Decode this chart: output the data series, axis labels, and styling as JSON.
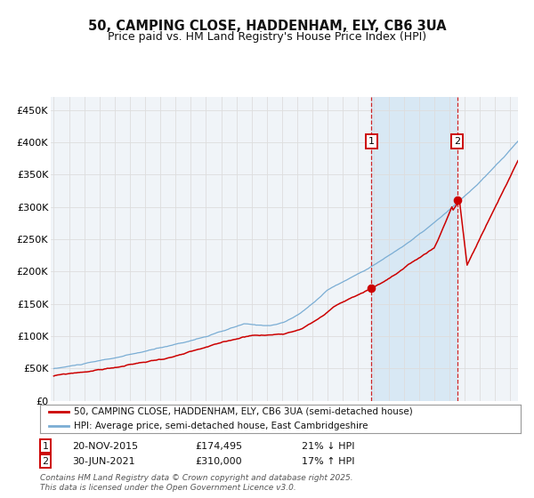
{
  "title": "50, CAMPING CLOSE, HADDENHAM, ELY, CB6 3UA",
  "subtitle": "Price paid vs. HM Land Registry's House Price Index (HPI)",
  "title_fontsize": 10.5,
  "subtitle_fontsize": 9,
  "bg_color": "#ffffff",
  "plot_bg_color": "#f0f4f8",
  "grid_color": "#dddddd",
  "red_line_color": "#cc0000",
  "blue_line_color": "#7aadd4",
  "highlight_bg": "#d8e8f4",
  "dashed_color": "#cc0000",
  "marker1_x": 2015.88,
  "marker1_y": 174495,
  "marker2_x": 2021.5,
  "marker2_y": 310000,
  "vline1_x": 2015.88,
  "vline2_x": 2021.5,
  "ylim": [
    0,
    470000
  ],
  "xlim_start": 1994.8,
  "xlim_end": 2025.5,
  "ytick_labels": [
    "£0",
    "£50K",
    "£100K",
    "£150K",
    "£200K",
    "£250K",
    "£300K",
    "£350K",
    "£400K",
    "£450K"
  ],
  "ytick_vals": [
    0,
    50000,
    100000,
    150000,
    200000,
    250000,
    300000,
    350000,
    400000,
    450000
  ],
  "xtick_vals": [
    1995,
    1996,
    1997,
    1998,
    1999,
    2000,
    2001,
    2002,
    2003,
    2004,
    2005,
    2006,
    2007,
    2008,
    2009,
    2010,
    2011,
    2012,
    2013,
    2014,
    2015,
    2016,
    2017,
    2018,
    2019,
    2020,
    2021,
    2022,
    2023,
    2024,
    2025
  ],
  "legend_label_red": "50, CAMPING CLOSE, HADDENHAM, ELY, CB6 3UA (semi-detached house)",
  "legend_label_blue": "HPI: Average price, semi-detached house, East Cambridgeshire",
  "annotation1_label": "1",
  "annotation2_label": "2",
  "footer": "Contains HM Land Registry data © Crown copyright and database right 2025.\nThis data is licensed under the Open Government Licence v3.0."
}
